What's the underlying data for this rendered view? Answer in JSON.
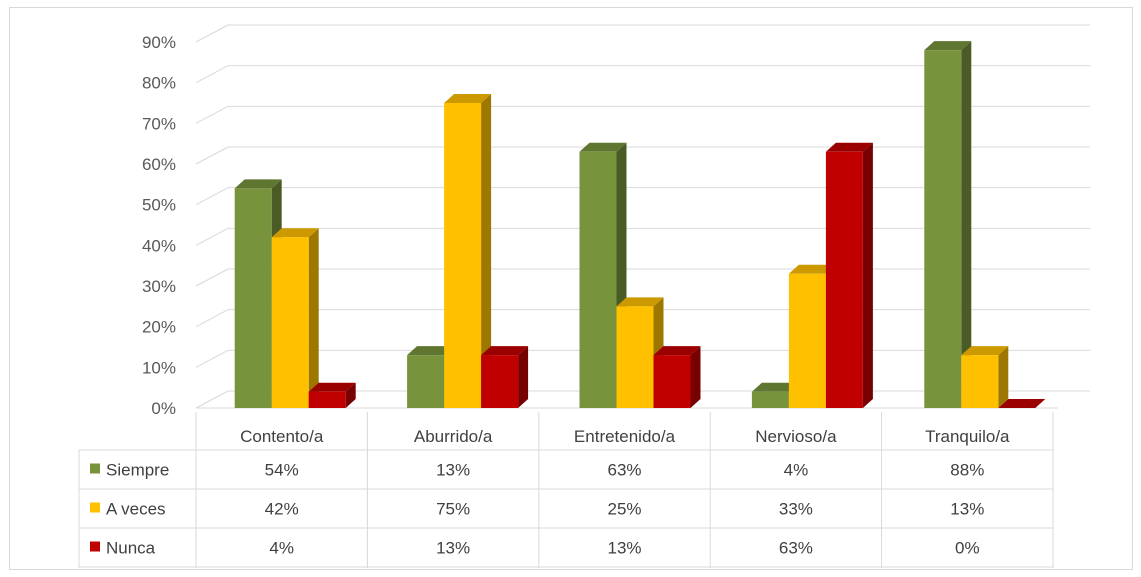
{
  "chart_data": {
    "type": "bar",
    "style": "3d-clustered-column-with-data-table",
    "categories": [
      "Contento/a",
      "Aburrido/a",
      "Entretenido/a",
      "Nervioso/a",
      "Tranquilo/a"
    ],
    "series": [
      {
        "name": "Siempre",
        "color": "#77933c",
        "values": [
          54,
          13,
          63,
          4,
          88
        ],
        "labels": [
          "54%",
          "13%",
          "63%",
          "4%",
          "88%"
        ]
      },
      {
        "name": "A veces",
        "color": "#ffc000",
        "values": [
          42,
          75,
          25,
          33,
          13
        ],
        "labels": [
          "42%",
          "75%",
          "25%",
          "33%",
          "13%"
        ]
      },
      {
        "name": "Nunca",
        "color": "#c00000",
        "values": [
          4,
          13,
          13,
          63,
          0
        ],
        "labels": [
          "4%",
          "13%",
          "13%",
          "63%",
          "0%"
        ]
      }
    ],
    "yticks": [
      "0%",
      "10%",
      "20%",
      "30%",
      "40%",
      "50%",
      "60%",
      "70%",
      "80%",
      "90%"
    ],
    "ylim": [
      0,
      90
    ],
    "grid": true,
    "legend": "data-table-left"
  }
}
